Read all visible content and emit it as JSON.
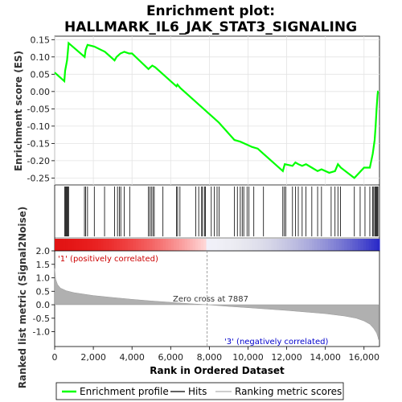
{
  "title_line1": "Enrichment plot:",
  "title_line2": "HALLMARK_IL6_JAK_STAT3_SIGNALING",
  "colors": {
    "enrichment": "#00ff00",
    "hits": "#000000",
    "ranking": "#b0b0b0",
    "positive_label": "#cc0000",
    "negative_label": "#0000cc"
  },
  "annotations": {
    "positive": "'1' (positively correlated)",
    "negative": "'3' (negatively correlated)",
    "zero_cross": "Zero cross at 7887"
  },
  "legend": {
    "enrichment": "Enrichment profile",
    "hits": "Hits",
    "ranking": "Ranking metric scores"
  },
  "chart_data": [
    {
      "type": "line",
      "name": "enrichment_profile",
      "ylabel": "Enrichment score (ES)",
      "ylim": [
        -0.27,
        0.16
      ],
      "xlim": [
        0,
        16800
      ],
      "y_ticks": [
        0.15,
        0.1,
        0.05,
        0.0,
        -0.05,
        -0.1,
        -0.15,
        -0.2,
        -0.25
      ],
      "y_tick_labels": [
        "0.15",
        "0.10",
        "0.05",
        "0.00",
        "-0.05",
        "-0.10",
        "-0.15",
        "-0.20",
        "-0.25"
      ],
      "grid": true,
      "series": [
        {
          "name": "Enrichment profile",
          "x": [
            0,
            500,
            540,
            640,
            680,
            720,
            1550,
            1600,
            1700,
            2050,
            2600,
            3100,
            3200,
            3300,
            3400,
            3600,
            3850,
            4000,
            4850,
            4950,
            5050,
            5200,
            5600,
            6300,
            6350,
            6500,
            7400,
            7700,
            7900,
            8200,
            8500,
            9300,
            9600,
            9800,
            10000,
            10200,
            10500,
            10800,
            11800,
            11900,
            12300,
            12450,
            12600,
            12800,
            13000,
            13300,
            13600,
            13800,
            14200,
            14500,
            14650,
            14800,
            15500,
            16000,
            16300,
            16450,
            16550,
            16600,
            16650,
            16700,
            16720,
            16750
          ],
          "y": [
            0.055,
            0.03,
            0.06,
            0.09,
            0.115,
            0.14,
            0.1,
            0.12,
            0.135,
            0.13,
            0.115,
            0.09,
            0.1,
            0.105,
            0.11,
            0.115,
            0.11,
            0.11,
            0.065,
            0.07,
            0.075,
            0.07,
            0.05,
            0.015,
            0.02,
            0.01,
            -0.035,
            -0.05,
            -0.06,
            -0.075,
            -0.09,
            -0.14,
            -0.145,
            -0.15,
            -0.155,
            -0.16,
            -0.165,
            -0.18,
            -0.23,
            -0.21,
            -0.215,
            -0.205,
            -0.21,
            -0.215,
            -0.21,
            -0.22,
            -0.23,
            -0.225,
            -0.235,
            -0.23,
            -0.21,
            -0.22,
            -0.25,
            -0.22,
            -0.22,
            -0.18,
            -0.14,
            -0.1,
            -0.05,
            -0.01,
            0.0,
            0.0
          ]
        }
      ]
    },
    {
      "type": "scatter",
      "name": "hits",
      "series": [
        {
          "name": "Hits",
          "x": [
            520,
            560,
            600,
            640,
            680,
            720,
            1540,
            1600,
            1700,
            2050,
            2580,
            3100,
            3250,
            3350,
            3420,
            3600,
            3880,
            4850,
            4920,
            5000,
            5080,
            5150,
            5600,
            6300,
            6360,
            6480,
            7300,
            7450,
            7600,
            7650,
            7750,
            7800,
            8100,
            8250,
            8400,
            8500,
            9300,
            9450,
            9600,
            9700,
            9780,
            9950,
            10050,
            10300,
            10800,
            11800,
            11880,
            11950,
            12300,
            12450,
            12600,
            12800,
            13000,
            13300,
            13600,
            13800,
            14300,
            14500,
            14650,
            14780,
            15500,
            15800,
            16050,
            16300,
            16450,
            16500,
            16560,
            16600,
            16640,
            16680,
            16720
          ]
        }
      ]
    },
    {
      "type": "area",
      "name": "ranking_metric",
      "ylabel": "Ranked list metric (Signal2Noise)",
      "xlabel": "Rank in Ordered Dataset",
      "ylim": [
        -1.55,
        2.0
      ],
      "xlim": [
        0,
        16800
      ],
      "y_ticks": [
        2.0,
        1.5,
        1.0,
        0.5,
        0.0,
        -0.5,
        -1.0
      ],
      "y_tick_labels": [
        "2.0",
        "1.5",
        "1.0",
        "0.5",
        "0.0",
        "-0.5",
        "-1.0"
      ],
      "x_ticks": [
        0,
        2000,
        4000,
        6000,
        8000,
        10000,
        12000,
        14000,
        16000
      ],
      "x_tick_labels": [
        "0",
        "2,000",
        "4,000",
        "6,000",
        "8,000",
        "10,000",
        "12,000",
        "14,000",
        "16,000"
      ],
      "zero_cross": 7887,
      "series": [
        {
          "name": "Ranking metric scores",
          "x": [
            0,
            50,
            150,
            300,
            600,
            1000,
            2000,
            3000,
            4000,
            5000,
            6000,
            7000,
            7887,
            9000,
            10000,
            11000,
            12000,
            13000,
            14000,
            15000,
            15600,
            16000,
            16300,
            16500,
            16650,
            16720,
            16750
          ],
          "y": [
            1.35,
            0.95,
            0.75,
            0.62,
            0.52,
            0.45,
            0.34,
            0.27,
            0.2,
            0.14,
            0.09,
            0.04,
            0.0,
            -0.06,
            -0.11,
            -0.16,
            -0.21,
            -0.27,
            -0.33,
            -0.42,
            -0.5,
            -0.6,
            -0.72,
            -0.88,
            -1.05,
            -1.2,
            -1.3
          ]
        }
      ]
    }
  ]
}
